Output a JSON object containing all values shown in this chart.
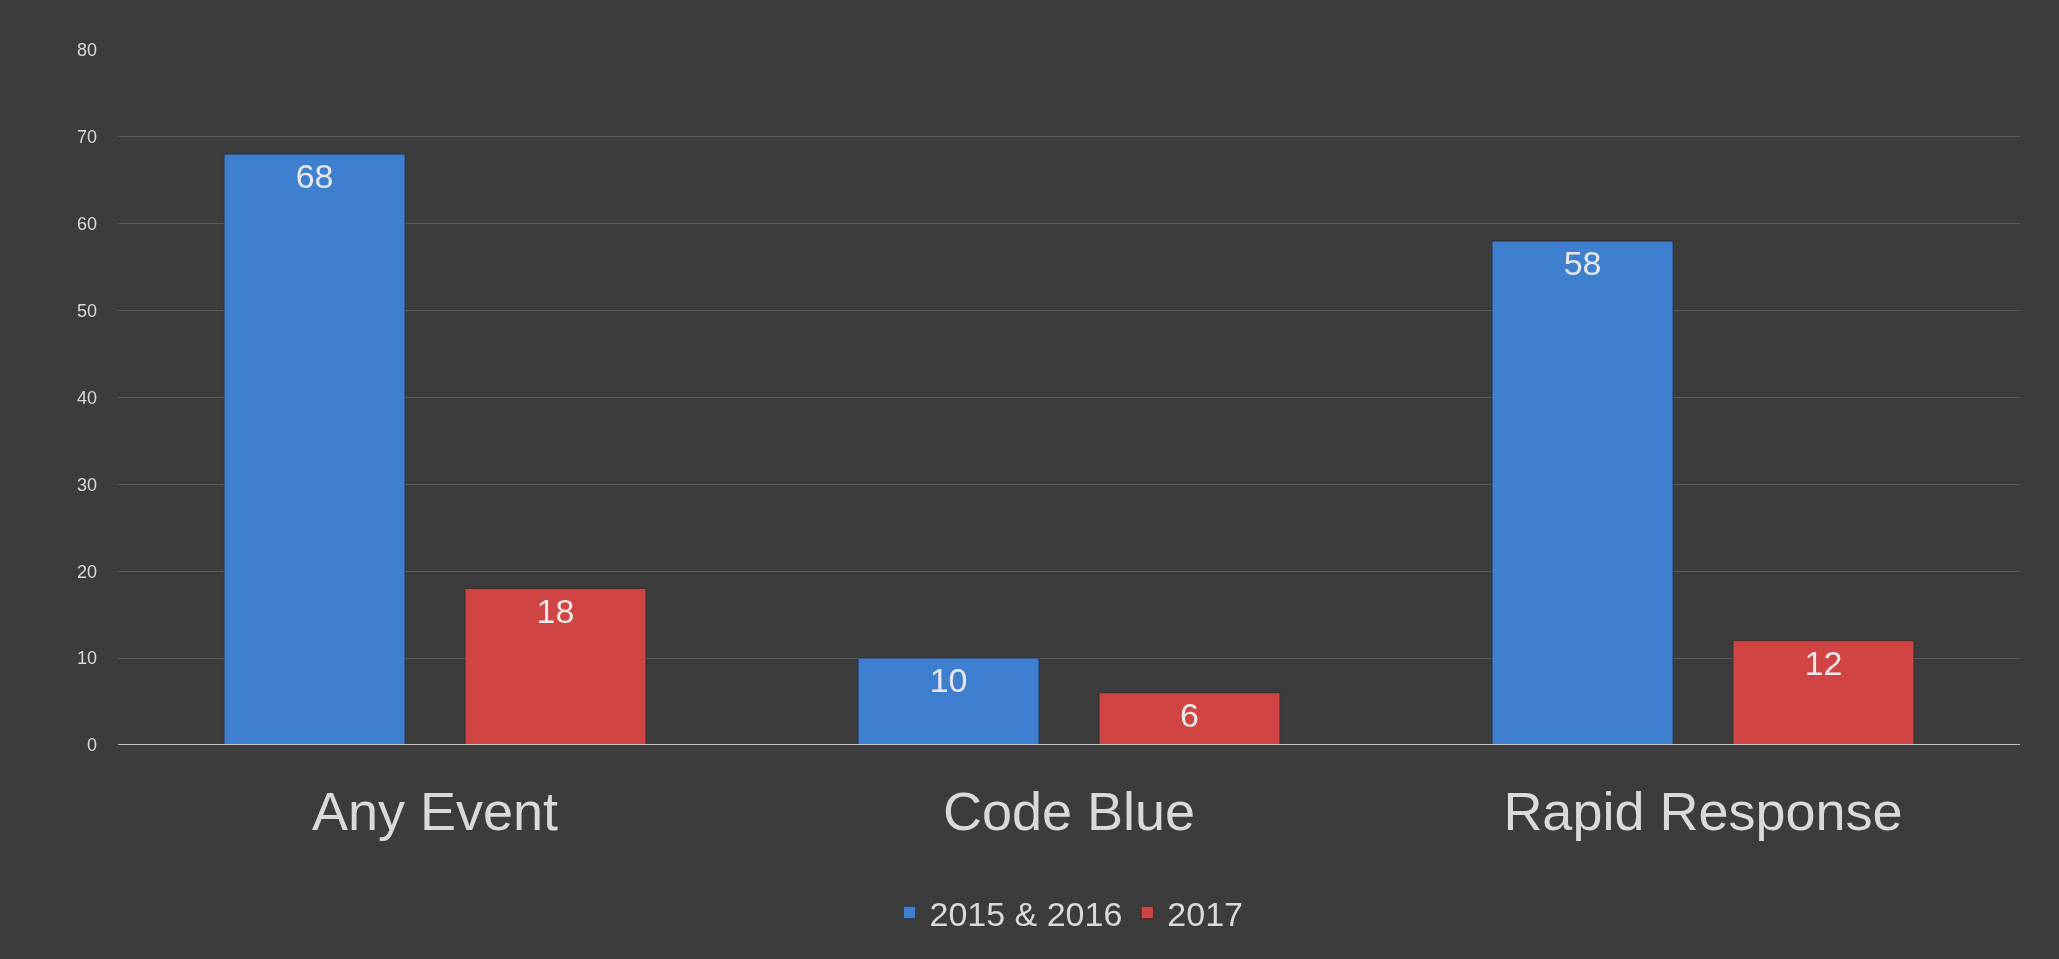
{
  "chart_data": {
    "type": "bar",
    "categories": [
      "Any Event",
      "Code Blue",
      "Rapid Response"
    ],
    "series": [
      {
        "name": "2015 & 2016",
        "color": "#3f7fd0",
        "values": [
          68,
          10,
          58
        ]
      },
      {
        "name": "2017",
        "color": "#d04444",
        "values": [
          18,
          6,
          12
        ]
      }
    ],
    "ylim": [
      0,
      80
    ],
    "yticks": [
      0,
      10,
      20,
      30,
      40,
      50,
      60,
      70,
      80
    ],
    "grid": "y",
    "legend": "bottom",
    "data_labels": true
  }
}
